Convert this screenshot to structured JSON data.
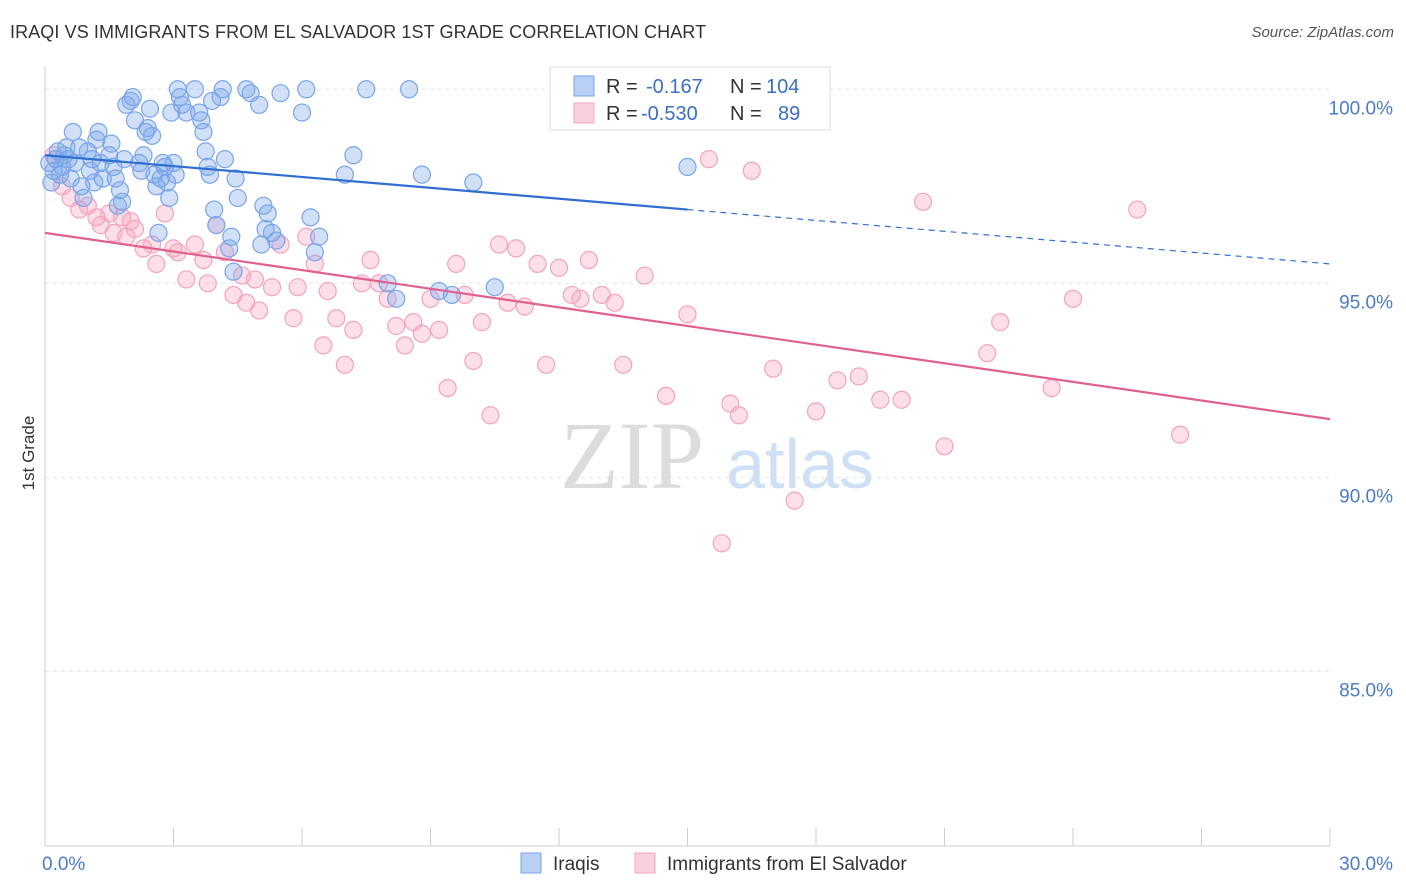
{
  "title": "IRAQI VS IMMIGRANTS FROM EL SALVADOR 1ST GRADE CORRELATION CHART",
  "source": "Source: ZipAtlas.com",
  "watermark": {
    "zip": "ZIP",
    "atlas": "atlas"
  },
  "legend": {
    "rows": [
      {
        "r_label": "R =",
        "r_value": "-0.167",
        "n_label": "N =",
        "n_value": "104",
        "color": "#7aa5e8"
      },
      {
        "r_label": "R =",
        "r_value": "-0.530",
        "n_label": "N =",
        "n_value": "89",
        "color": "#f5a3bd"
      }
    ]
  },
  "bottom_legend": [
    {
      "name": "Iraqis",
      "color": "#7aa5e8"
    },
    {
      "name": "Immigrants from El Salvador",
      "color": "#f5a3bd"
    }
  ],
  "chart_data": {
    "type": "scatter",
    "title": "IRAQI VS IMMIGRANTS FROM EL SALVADOR 1ST GRADE CORRELATION CHART",
    "ylabel": "1st Grade",
    "xlabel": "",
    "xlim": [
      0,
      30
    ],
    "ylim": [
      80.5,
      100.6
    ],
    "x_tick_labels": [
      "0.0%",
      "30.0%"
    ],
    "y_ticks": [
      {
        "value": 100,
        "label": "100.0%"
      },
      {
        "value": 95,
        "label": "95.0%"
      },
      {
        "value": 90,
        "label": "90.0%"
      },
      {
        "value": 85,
        "label": "85.0%"
      }
    ],
    "grid": true,
    "series": [
      {
        "name": "Iraqis",
        "color": "#7aa5e8",
        "line_color": "#2f6fd0",
        "trend": {
          "x0": 0,
          "y0": 98.3,
          "x1": 15,
          "y1": 96.9,
          "dash_to_x": 30,
          "dash_to_y": 95.5
        },
        "points": [
          [
            0.1,
            98.1
          ],
          [
            0.15,
            97.6
          ],
          [
            0.2,
            97.9
          ],
          [
            0.25,
            98.2
          ],
          [
            0.3,
            98.4
          ],
          [
            0.35,
            97.8
          ],
          [
            0.4,
            98.0
          ],
          [
            0.45,
            98.3
          ],
          [
            0.5,
            98.5
          ],
          [
            0.55,
            98.2
          ],
          [
            0.6,
            97.7
          ],
          [
            0.65,
            98.9
          ],
          [
            0.7,
            98.1
          ],
          [
            0.8,
            98.5
          ],
          [
            0.85,
            97.5
          ],
          [
            0.9,
            97.2
          ],
          [
            1.0,
            98.4
          ],
          [
            1.05,
            97.9
          ],
          [
            1.1,
            98.2
          ],
          [
            1.15,
            97.6
          ],
          [
            1.2,
            98.7
          ],
          [
            1.25,
            98.9
          ],
          [
            1.3,
            98.1
          ],
          [
            1.35,
            97.7
          ],
          [
            1.5,
            98.3
          ],
          [
            1.55,
            98.6
          ],
          [
            1.6,
            98.0
          ],
          [
            1.65,
            97.7
          ],
          [
            1.7,
            97.0
          ],
          [
            1.75,
            97.4
          ],
          [
            1.8,
            97.1
          ],
          [
            1.85,
            98.2
          ],
          [
            1.9,
            99.6
          ],
          [
            2.0,
            99.7
          ],
          [
            2.05,
            99.8
          ],
          [
            2.1,
            99.2
          ],
          [
            2.2,
            98.1
          ],
          [
            2.25,
            97.9
          ],
          [
            2.3,
            98.3
          ],
          [
            2.35,
            98.9
          ],
          [
            2.4,
            99.0
          ],
          [
            2.45,
            99.5
          ],
          [
            2.5,
            98.8
          ],
          [
            2.55,
            97.8
          ],
          [
            2.6,
            97.5
          ],
          [
            2.65,
            96.3
          ],
          [
            2.7,
            97.7
          ],
          [
            2.75,
            98.1
          ],
          [
            2.8,
            98.0
          ],
          [
            2.85,
            97.6
          ],
          [
            2.9,
            97.2
          ],
          [
            2.95,
            99.4
          ],
          [
            3.0,
            98.1
          ],
          [
            3.05,
            97.8
          ],
          [
            3.1,
            100.0
          ],
          [
            3.15,
            99.8
          ],
          [
            3.2,
            99.6
          ],
          [
            3.3,
            99.4
          ],
          [
            3.5,
            100.0
          ],
          [
            3.6,
            99.4
          ],
          [
            3.65,
            99.2
          ],
          [
            3.7,
            98.9
          ],
          [
            3.75,
            98.4
          ],
          [
            3.8,
            98.0
          ],
          [
            3.85,
            97.8
          ],
          [
            3.9,
            99.7
          ],
          [
            3.95,
            96.9
          ],
          [
            4.0,
            96.5
          ],
          [
            4.1,
            99.8
          ],
          [
            4.15,
            100.0
          ],
          [
            4.2,
            98.2
          ],
          [
            4.3,
            95.9
          ],
          [
            4.35,
            96.2
          ],
          [
            4.4,
            95.3
          ],
          [
            4.45,
            97.7
          ],
          [
            4.5,
            97.2
          ],
          [
            4.7,
            100.0
          ],
          [
            4.8,
            99.9
          ],
          [
            5.0,
            99.6
          ],
          [
            5.05,
            96.0
          ],
          [
            5.1,
            97.0
          ],
          [
            5.15,
            96.4
          ],
          [
            5.2,
            96.8
          ],
          [
            5.3,
            96.3
          ],
          [
            5.4,
            96.1
          ],
          [
            5.5,
            99.9
          ],
          [
            6.0,
            99.4
          ],
          [
            6.1,
            100.0
          ],
          [
            6.2,
            96.7
          ],
          [
            6.3,
            95.8
          ],
          [
            6.4,
            96.2
          ],
          [
            7.0,
            97.8
          ],
          [
            7.2,
            98.3
          ],
          [
            7.5,
            100.0
          ],
          [
            8.0,
            95.0
          ],
          [
            8.2,
            94.6
          ],
          [
            8.5,
            100.0
          ],
          [
            8.8,
            97.8
          ],
          [
            9.2,
            94.8
          ],
          [
            9.5,
            94.7
          ],
          [
            10.0,
            97.6
          ],
          [
            10.5,
            94.9
          ],
          [
            15.0,
            98.0
          ]
        ]
      },
      {
        "name": "Immigrants from El Salvador",
        "color": "#f5a3bd",
        "line_color": "#e0608e",
        "trend": {
          "x0": 0,
          "y0": 96.3,
          "x1": 30,
          "y1": 91.5
        },
        "points": [
          [
            0.2,
            98.3
          ],
          [
            0.4,
            97.5
          ],
          [
            0.6,
            97.2
          ],
          [
            0.8,
            96.9
          ],
          [
            1.0,
            97.0
          ],
          [
            1.2,
            96.7
          ],
          [
            1.3,
            96.5
          ],
          [
            1.5,
            96.8
          ],
          [
            1.6,
            96.3
          ],
          [
            1.8,
            96.7
          ],
          [
            1.9,
            96.2
          ],
          [
            2.0,
            96.6
          ],
          [
            2.1,
            96.4
          ],
          [
            2.3,
            95.9
          ],
          [
            2.5,
            96.0
          ],
          [
            2.6,
            95.5
          ],
          [
            2.8,
            96.8
          ],
          [
            3.0,
            95.9
          ],
          [
            3.1,
            95.8
          ],
          [
            3.3,
            95.1
          ],
          [
            3.5,
            96.0
          ],
          [
            3.7,
            95.6
          ],
          [
            3.8,
            95.0
          ],
          [
            4.0,
            96.5
          ],
          [
            4.2,
            95.8
          ],
          [
            4.4,
            94.7
          ],
          [
            4.6,
            95.2
          ],
          [
            4.7,
            94.5
          ],
          [
            4.9,
            95.1
          ],
          [
            5.0,
            94.3
          ],
          [
            5.3,
            94.9
          ],
          [
            5.5,
            96.0
          ],
          [
            5.8,
            94.1
          ],
          [
            5.9,
            94.9
          ],
          [
            6.1,
            96.2
          ],
          [
            6.3,
            95.5
          ],
          [
            6.5,
            93.4
          ],
          [
            6.6,
            94.8
          ],
          [
            6.8,
            94.1
          ],
          [
            7.0,
            92.9
          ],
          [
            7.2,
            93.8
          ],
          [
            7.4,
            95.0
          ],
          [
            7.6,
            95.6
          ],
          [
            7.8,
            95.0
          ],
          [
            8.0,
            94.6
          ],
          [
            8.2,
            93.9
          ],
          [
            8.4,
            93.4
          ],
          [
            8.6,
            94.0
          ],
          [
            8.8,
            93.7
          ],
          [
            9.0,
            94.6
          ],
          [
            9.2,
            93.8
          ],
          [
            9.4,
            92.3
          ],
          [
            9.6,
            95.5
          ],
          [
            9.8,
            94.7
          ],
          [
            10.0,
            93.0
          ],
          [
            10.2,
            94.0
          ],
          [
            10.4,
            91.6
          ],
          [
            10.6,
            96.0
          ],
          [
            10.8,
            94.5
          ],
          [
            11.0,
            95.9
          ],
          [
            11.2,
            94.4
          ],
          [
            11.5,
            95.5
          ],
          [
            11.7,
            92.9
          ],
          [
            12.0,
            95.4
          ],
          [
            12.3,
            94.7
          ],
          [
            12.5,
            94.6
          ],
          [
            12.7,
            95.6
          ],
          [
            13.0,
            94.7
          ],
          [
            13.3,
            94.5
          ],
          [
            13.5,
            92.9
          ],
          [
            14.0,
            95.2
          ],
          [
            14.5,
            92.1
          ],
          [
            15.0,
            94.2
          ],
          [
            15.5,
            98.2
          ],
          [
            15.8,
            88.3
          ],
          [
            16.0,
            91.9
          ],
          [
            16.2,
            91.6
          ],
          [
            16.5,
            97.9
          ],
          [
            17.0,
            92.8
          ],
          [
            17.5,
            89.4
          ],
          [
            18.0,
            91.7
          ],
          [
            18.5,
            92.5
          ],
          [
            19.0,
            92.6
          ],
          [
            19.5,
            92.0
          ],
          [
            20.0,
            92.0
          ],
          [
            20.5,
            97.1
          ],
          [
            21.0,
            90.8
          ],
          [
            22.0,
            93.2
          ],
          [
            22.3,
            94.0
          ],
          [
            23.5,
            92.3
          ],
          [
            24.0,
            94.6
          ],
          [
            25.5,
            96.9
          ],
          [
            26.5,
            91.1
          ]
        ]
      }
    ]
  }
}
